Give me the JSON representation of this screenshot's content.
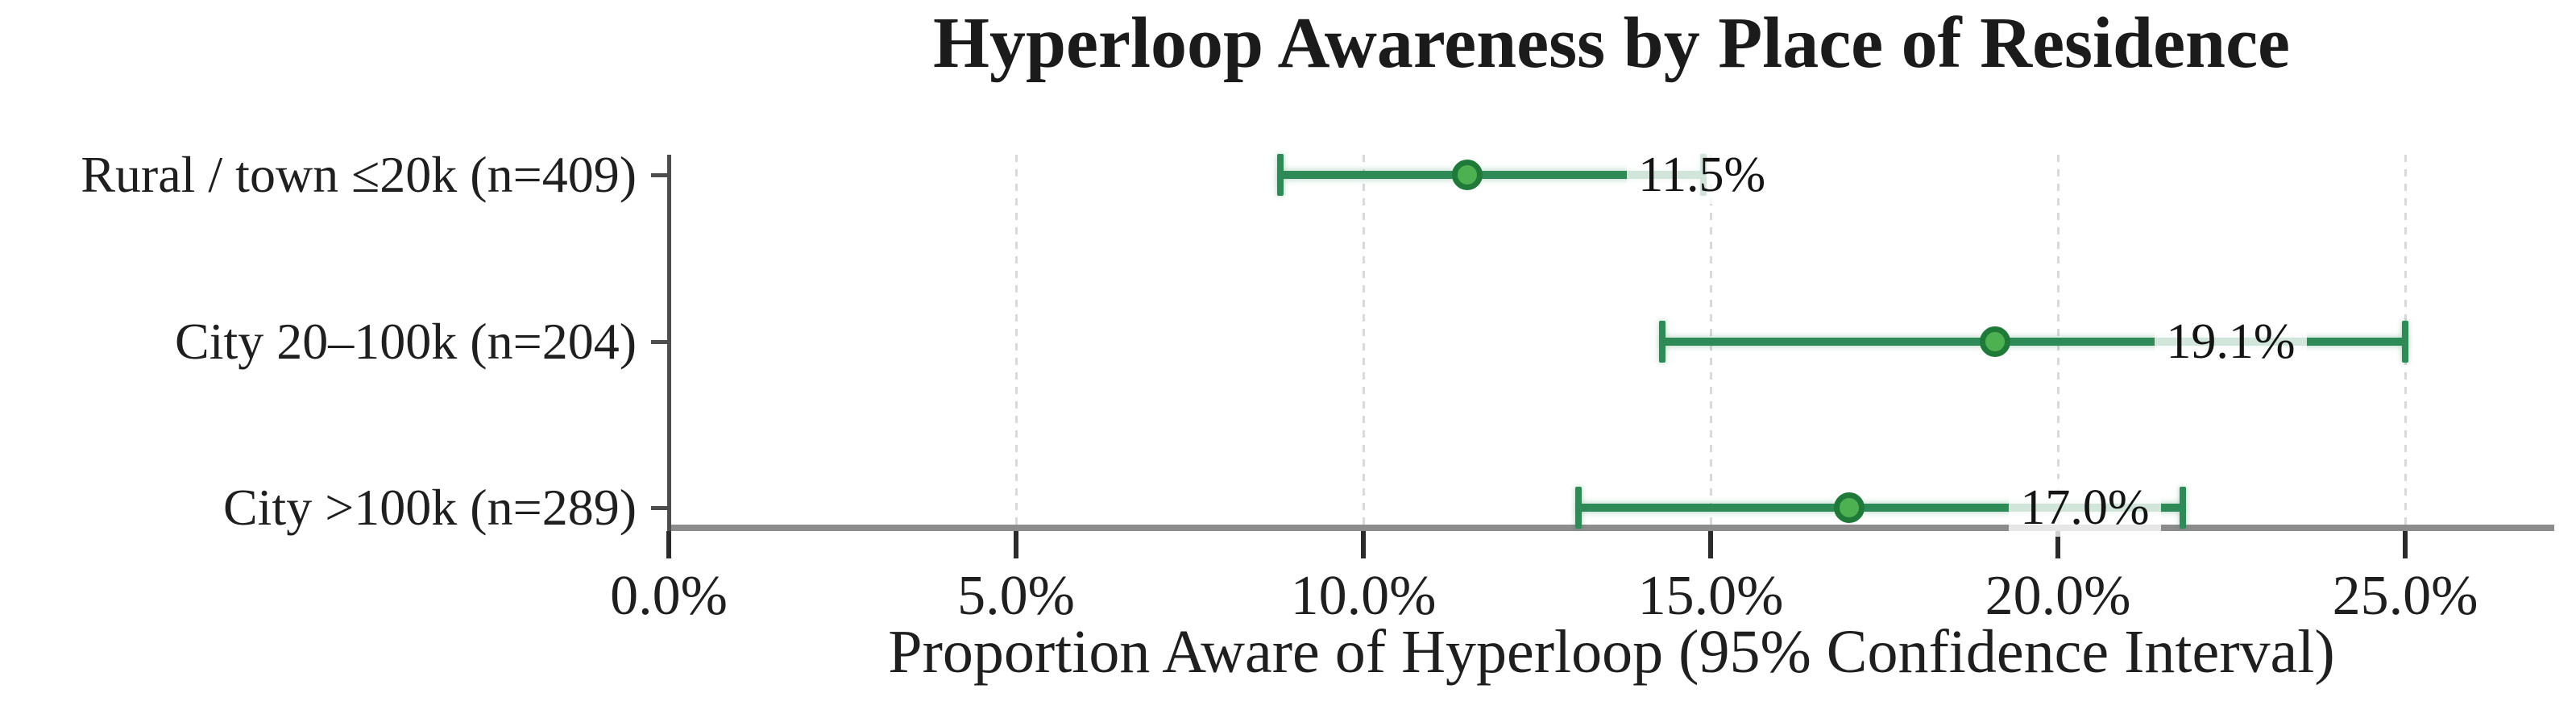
{
  "chart_data": {
    "type": "scatter",
    "subtype": "horizontal_error_bar",
    "title": "Hyperloop Awareness by Place of Residence",
    "xlabel": "Proportion Aware of Hyperloop (95% Confidence Interval)",
    "ylabel": "",
    "legend": null,
    "grid": "vertical-dashed",
    "x_axis": {
      "unit": "%",
      "tick_labels": [
        "0.0%",
        "5.0%",
        "10.0%",
        "15.0%",
        "20.0%",
        "25.0%"
      ],
      "tick_values": [
        0,
        5,
        10,
        15,
        20,
        25
      ],
      "xlim": [
        0,
        27.15
      ]
    },
    "categories": [
      "Rural / town ≤20k (n=409)",
      "City 20–100k (n=204)",
      "City >100k (n=289)"
    ],
    "series": [
      {
        "category": "Rural / town ≤20k (n=409)",
        "n": 409,
        "value_pct": 11.5,
        "value_label": "11.5%",
        "ci_low_pct": 8.8,
        "ci_high_pct": 14.9
      },
      {
        "category": "City 20–100k (n=204)",
        "n": 204,
        "value_pct": 19.1,
        "value_label": "19.1%",
        "ci_low_pct": 14.3,
        "ci_high_pct": 25.0
      },
      {
        "category": "City >100k (n=289)",
        "n": 289,
        "value_pct": 17.0,
        "value_label": "17.0%",
        "ci_low_pct": 13.1,
        "ci_high_pct": 21.8
      }
    ],
    "colors": {
      "bar": "#2e8b57",
      "marker_fill": "#4db151",
      "marker_edge": "#1f7a3a",
      "axis_line": "#8c8c8c",
      "spine": "#4d4d4d",
      "tick": "#2b2b2b",
      "gridline": "#d9d9d9",
      "text": "#1f1f1f",
      "background": "#ffffff"
    }
  }
}
